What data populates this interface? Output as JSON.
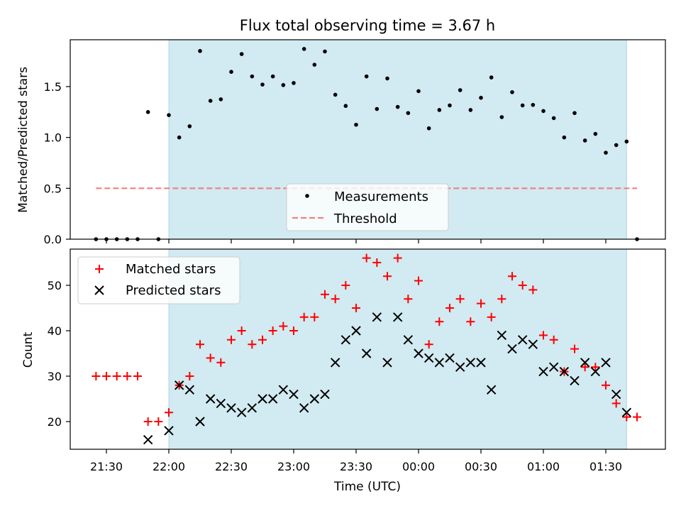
{
  "chart_data": [
    {
      "type": "scatter",
      "title": "Flux total observing time = 3.67 h",
      "xlabel": "",
      "ylabel": "Matched/Predicted stars",
      "ylim": [
        0,
        1.95
      ],
      "yticks": [
        "0.0",
        "0.5",
        "1.0",
        "1.5"
      ],
      "ytick_values": [
        0,
        0.5,
        1.0,
        1.5
      ],
      "legend_position": "lower-center",
      "shaded_interval": [
        "22:00",
        "01:40"
      ],
      "shade_color": "#add8e6",
      "series": [
        {
          "name": "Measurements",
          "marker": "dot",
          "color": "#000000",
          "x": [
            "21:25",
            "21:30",
            "21:35",
            "21:40",
            "21:45",
            "21:50",
            "21:55",
            "22:00",
            "22:05",
            "22:10",
            "22:15",
            "22:20",
            "22:25",
            "22:30",
            "22:35",
            "22:40",
            "22:45",
            "22:50",
            "22:55",
            "23:00",
            "23:05",
            "23:10",
            "23:15",
            "23:20",
            "23:25",
            "23:30",
            "23:35",
            "23:40",
            "23:45",
            "23:50",
            "23:55",
            "00:00",
            "00:05",
            "00:10",
            "00:15",
            "00:20",
            "00:25",
            "00:30",
            "00:35",
            "00:40",
            "00:45",
            "00:50",
            "00:55",
            "01:00",
            "01:05",
            "01:10",
            "01:15",
            "01:20",
            "01:25",
            "01:30",
            "01:35",
            "01:40",
            "01:45"
          ],
          "y": [
            0,
            0,
            0,
            0,
            0,
            1.25,
            0,
            1.22,
            1.0,
            1.11,
            1.85,
            1.36,
            1.375,
            1.645,
            1.82,
            1.6,
            1.52,
            1.6,
            1.515,
            1.535,
            1.87,
            1.715,
            1.845,
            1.42,
            1.31,
            1.125,
            1.6,
            1.28,
            1.58,
            1.3,
            1.24,
            1.455,
            1.09,
            1.27,
            1.315,
            1.465,
            1.27,
            1.39,
            1.59,
            1.2,
            1.445,
            1.315,
            1.32,
            1.26,
            1.19,
            1.0,
            1.24,
            0.97,
            1.035,
            0.85,
            0.925,
            0.96,
            0
          ]
        },
        {
          "name": "Threshold",
          "style": "dashed",
          "color": "#f08080",
          "x": [
            "21:25",
            "01:45"
          ],
          "y": [
            0.5,
            0.5
          ]
        }
      ]
    },
    {
      "type": "scatter",
      "title": "",
      "xlabel": "Time (UTC)",
      "ylabel": "Count",
      "ylim": [
        13.8,
        58.2
      ],
      "yticks": [
        "20",
        "30",
        "40",
        "50"
      ],
      "ytick_values": [
        20,
        30,
        40,
        50
      ],
      "xticks": [
        "21:30",
        "22:00",
        "22:30",
        "23:00",
        "23:30",
        "00:00",
        "00:30",
        "01:00",
        "01:30"
      ],
      "legend_position": "upper-left",
      "shaded_interval": [
        "22:00",
        "01:40"
      ],
      "series": [
        {
          "name": "Matched stars",
          "marker": "plus",
          "color": "#ff0000",
          "x": [
            "21:25",
            "21:30",
            "21:35",
            "21:40",
            "21:45",
            "21:50",
            "21:55",
            "22:00",
            "22:05",
            "22:10",
            "22:15",
            "22:20",
            "22:25",
            "22:30",
            "22:35",
            "22:40",
            "22:45",
            "22:50",
            "22:55",
            "23:00",
            "23:05",
            "23:10",
            "23:15",
            "23:20",
            "23:25",
            "23:30",
            "23:35",
            "23:40",
            "23:45",
            "23:50",
            "23:55",
            "00:00",
            "00:05",
            "00:10",
            "00:15",
            "00:20",
            "00:25",
            "00:30",
            "00:35",
            "00:40",
            "00:45",
            "00:50",
            "00:55",
            "01:00",
            "01:05",
            "01:10",
            "01:15",
            "01:20",
            "01:25",
            "01:30",
            "01:35",
            "01:40",
            "01:45"
          ],
          "y": [
            30,
            30,
            30,
            30,
            30,
            20,
            20,
            22,
            28,
            30,
            37,
            34,
            33,
            38,
            40,
            37,
            38,
            40,
            41,
            40,
            43,
            43,
            48,
            47,
            50,
            45,
            56,
            55,
            52,
            56,
            47,
            51,
            37,
            42,
            45,
            47,
            42,
            46,
            43,
            47,
            52,
            50,
            49,
            39,
            38,
            31,
            36,
            32,
            32,
            28,
            24,
            21,
            21
          ]
        },
        {
          "name": "Predicted stars",
          "marker": "x",
          "color": "#000000",
          "x": [
            "21:50",
            "22:00",
            "22:05",
            "22:10",
            "22:15",
            "22:20",
            "22:25",
            "22:30",
            "22:35",
            "22:40",
            "22:45",
            "22:50",
            "22:55",
            "23:00",
            "23:05",
            "23:10",
            "23:15",
            "23:20",
            "23:25",
            "23:30",
            "23:35",
            "23:40",
            "23:45",
            "23:50",
            "23:55",
            "00:00",
            "00:05",
            "00:10",
            "00:15",
            "00:20",
            "00:25",
            "00:30",
            "00:35",
            "00:40",
            "00:45",
            "00:50",
            "00:55",
            "01:00",
            "01:05",
            "01:10",
            "01:15",
            "01:20",
            "01:25",
            "01:30",
            "01:35",
            "01:40"
          ],
          "y": [
            16,
            18,
            28,
            27,
            20,
            25,
            24,
            23,
            22,
            23,
            25,
            25,
            27,
            26,
            23,
            25,
            26,
            33,
            38,
            40,
            35,
            43,
            33,
            43,
            38,
            35,
            34,
            33,
            34,
            32,
            33,
            33,
            27,
            39,
            36,
            38,
            37,
            31,
            32,
            31,
            29,
            33,
            31,
            33,
            26,
            22
          ]
        }
      ]
    }
  ]
}
